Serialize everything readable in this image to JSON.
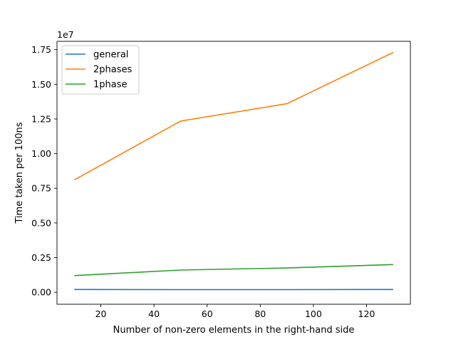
{
  "chart_data": {
    "type": "line",
    "title": "",
    "xlabel": "Number of non-zero elements in the right-hand side",
    "ylabel": "Time taken per 100ns",
    "y_offset_label": "1e7",
    "x": [
      10,
      50,
      90,
      130
    ],
    "xlim": [
      3.5,
      136.5
    ],
    "ylim": [
      -0.0865,
      1.81
    ],
    "y_multiplier": 10000000,
    "x_ticks": [
      20,
      40,
      60,
      80,
      100,
      120
    ],
    "x_tick_labels": [
      "20",
      "40",
      "60",
      "80",
      "100",
      "120"
    ],
    "y_ticks": [
      0,
      0.25,
      0.5,
      0.75,
      1.0,
      1.25,
      1.5,
      1.75
    ],
    "y_tick_labels": [
      "0.00",
      "0.25",
      "0.50",
      "0.75",
      "1.00",
      "1.25",
      "1.50",
      "1.75"
    ],
    "grid": false,
    "legend_position": "top-left",
    "series": [
      {
        "name": "general",
        "color": "#1f77b4",
        "values": [
          200000,
          190000,
          190000,
          200000
        ]
      },
      {
        "name": "2phases",
        "color": "#ff7f0e",
        "values": [
          8100000,
          12350000,
          13600000,
          17300000
        ]
      },
      {
        "name": "1phase",
        "color": "#2ca02c",
        "values": [
          1200000,
          1600000,
          1750000,
          2000000
        ]
      }
    ]
  }
}
